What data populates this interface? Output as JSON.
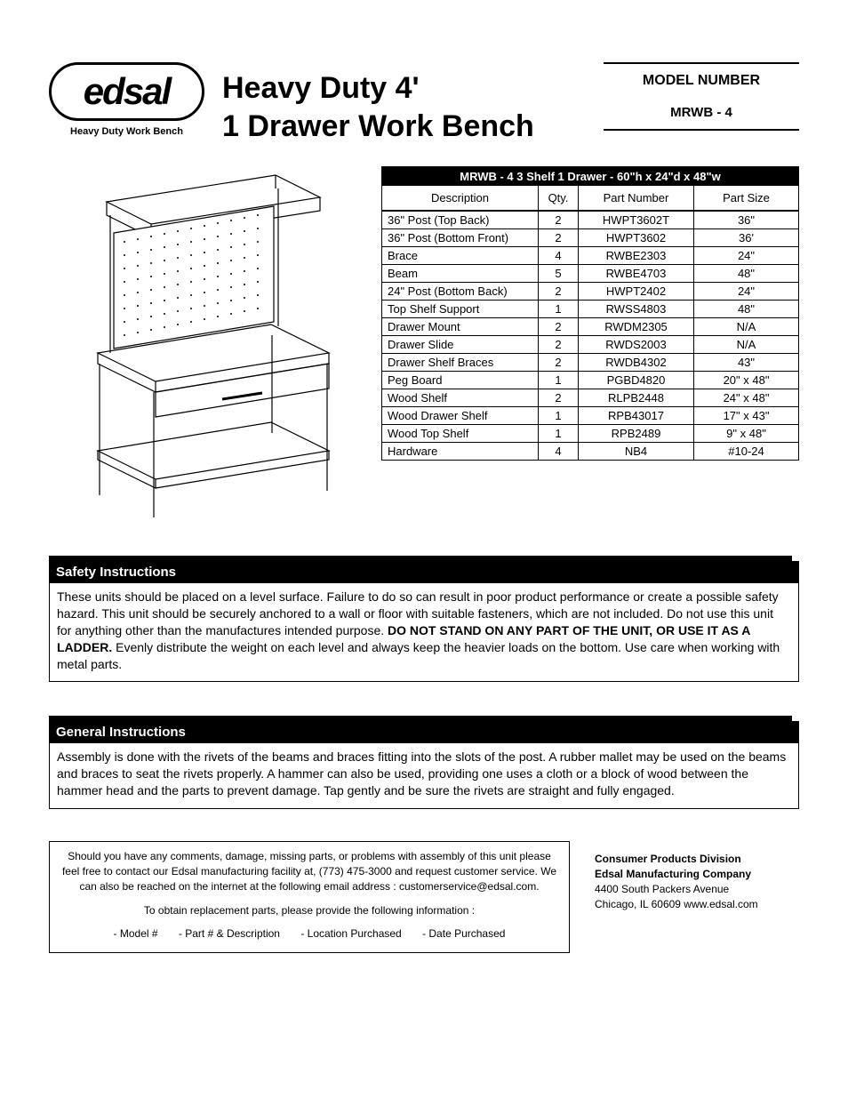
{
  "header": {
    "logo_text": "edsal",
    "logo_caption": "Heavy Duty Work Bench",
    "title_line1": "Heavy Duty 4'",
    "title_line2": "1 Drawer Work Bench",
    "model_label": "MODEL NUMBER",
    "model_value": "MRWB - 4"
  },
  "parts_table": {
    "title": "MRWB - 4   3 Shelf   1 Drawer - 60\"h x 24\"d x 48\"w",
    "columns": [
      "Description",
      "Qty.",
      "Part Number",
      "Part Size"
    ],
    "rows": [
      [
        "36\" Post (Top Back)",
        "2",
        "HWPT3602T",
        "36\""
      ],
      [
        "36\" Post (Bottom Front)",
        "2",
        "HWPT3602",
        "36'"
      ],
      [
        "Brace",
        "4",
        "RWBE2303",
        "24\""
      ],
      [
        "Beam",
        "5",
        "RWBE4703",
        "48\""
      ],
      [
        "24\" Post (Bottom Back)",
        "2",
        "HWPT2402",
        "24\""
      ],
      [
        "Top Shelf Support",
        "1",
        "RWSS4803",
        "48\""
      ],
      [
        "Drawer Mount",
        "2",
        "RWDM2305",
        "N/A"
      ],
      [
        "Drawer Slide",
        "2",
        "RWDS2003",
        "N/A"
      ],
      [
        "Drawer Shelf Braces",
        "2",
        "RWDB4302",
        "43\""
      ],
      [
        "Peg Board",
        "1",
        "PGBD4820",
        "20\" x 48\""
      ],
      [
        "Wood Shelf",
        "2",
        "RLPB2448",
        "24\" x 48\""
      ],
      [
        "Wood Drawer Shelf",
        "1",
        "RPB43017",
        "17\" x 43\""
      ],
      [
        "Wood Top Shelf",
        "1",
        "RPB2489",
        "9\" x 48\""
      ],
      [
        "Hardware",
        "4",
        "NB4",
        "#10-24"
      ]
    ]
  },
  "safety": {
    "title": "Safety Instructions",
    "text_a": "These units should be placed on a level surface.  Failure to do so can result in poor product performance or create a possible safety hazard.  This unit should be securely anchored to a wall or floor with suitable fasteners, which are not included.  Do not use this unit for anything other than the manufactures intended purpose.  ",
    "emph": "DO NOT STAND ON ANY PART OF THE UNIT, OR USE IT AS A LADDER.",
    "text_b": "  Evenly distribute the weight on each level and always keep the heavier loads on the bottom.  Use care when working with metal parts."
  },
  "general": {
    "title": "General Instructions",
    "text": "Assembly is done with the rivets of the beams and braces fitting into the slots of the post.  A rubber mallet may be used on the beams and braces to seat the rivets properly.  A hammer can also be used, providing one uses a cloth or a block of wood between the hammer head and the parts to prevent damage.  Tap gently and be sure the rivets are straight and fully engaged."
  },
  "contact": {
    "para1": "Should you have any comments, damage, missing parts, or problems with assembly of this unit please feel free to contact our Edsal manufacturing facility at,  (773) 475-3000 and request customer service.  We can also be reached on the internet at the following email address : customerservice@edsal.com.",
    "para2": "To obtain replacement parts, please provide the following information :",
    "items": [
      "- Model #",
      "- Part # & Description",
      "- Location Purchased",
      "- Date Purchased"
    ]
  },
  "company": {
    "l1": "Consumer Products Division",
    "l2": "Edsal Manufacturing Company",
    "l3": "4400 South Packers Avenue",
    "l4": "Chicago, IL 60609    www.edsal.com"
  }
}
